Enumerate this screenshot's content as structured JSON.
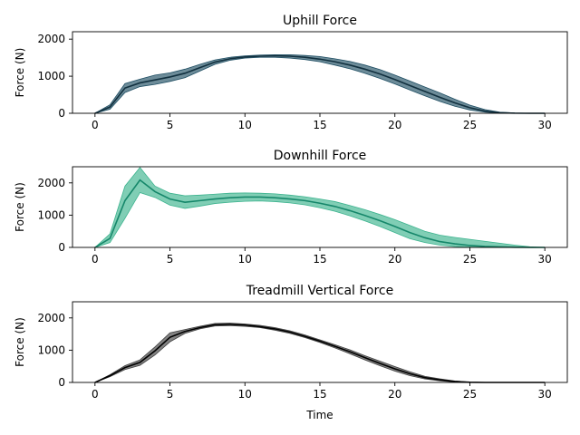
{
  "chart_data": [
    {
      "type": "area",
      "title": "Uphill Force",
      "xlabel": "",
      "ylabel": "Force (N)",
      "xlim": [
        -1.5,
        31.5
      ],
      "ylim": [
        0,
        2200
      ],
      "xticks": [
        0,
        5,
        10,
        15,
        20,
        25,
        30
      ],
      "yticks": [
        0,
        1000,
        2000
      ],
      "grid": false,
      "colors": {
        "line": "#11303f",
        "band": "#1f4e63"
      },
      "x": [
        0,
        1,
        2,
        3,
        4,
        5,
        6,
        7,
        8,
        9,
        10,
        11,
        12,
        13,
        14,
        15,
        16,
        17,
        18,
        19,
        20,
        21,
        22,
        23,
        24,
        25,
        26,
        27,
        28,
        29,
        30
      ],
      "mean": [
        0,
        170,
        680,
        820,
        900,
        980,
        1080,
        1230,
        1380,
        1470,
        1520,
        1540,
        1550,
        1540,
        1510,
        1460,
        1390,
        1300,
        1190,
        1060,
        910,
        750,
        590,
        430,
        280,
        150,
        60,
        15,
        3,
        0,
        0
      ],
      "lower": [
        0,
        110,
        560,
        720,
        780,
        860,
        960,
        1140,
        1320,
        1430,
        1490,
        1510,
        1510,
        1490,
        1450,
        1390,
        1300,
        1200,
        1080,
        940,
        790,
        630,
        470,
        320,
        190,
        90,
        30,
        5,
        0,
        0,
        0
      ],
      "upper": [
        0,
        230,
        800,
        920,
        1030,
        1090,
        1190,
        1320,
        1440,
        1510,
        1550,
        1570,
        1580,
        1580,
        1560,
        1530,
        1470,
        1400,
        1300,
        1180,
        1030,
        870,
        710,
        550,
        380,
        220,
        100,
        30,
        8,
        0,
        0
      ]
    },
    {
      "type": "area",
      "title": "Downhill Force",
      "xlabel": "",
      "ylabel": "Force (N)",
      "xlim": [
        -1.5,
        31.5
      ],
      "ylim": [
        0,
        2500
      ],
      "xticks": [
        0,
        5,
        10,
        15,
        20,
        25,
        30
      ],
      "yticks": [
        0,
        1000,
        2000
      ],
      "grid": false,
      "colors": {
        "line": "#15876a",
        "band": "#3cb38e"
      },
      "x": [
        0,
        1,
        2,
        3,
        4,
        5,
        6,
        7,
        8,
        9,
        10,
        11,
        12,
        13,
        14,
        15,
        16,
        17,
        18,
        19,
        20,
        21,
        22,
        23,
        24,
        25,
        26,
        27,
        28,
        29,
        30
      ],
      "mean": [
        0,
        280,
        1450,
        2090,
        1730,
        1500,
        1400,
        1450,
        1500,
        1540,
        1560,
        1560,
        1540,
        1500,
        1450,
        1370,
        1270,
        1140,
        990,
        830,
        650,
        460,
        300,
        180,
        110,
        60,
        30,
        15,
        5,
        0,
        0
      ],
      "lower": [
        0,
        150,
        900,
        1700,
        1550,
        1310,
        1210,
        1280,
        1360,
        1400,
        1430,
        1440,
        1420,
        1380,
        1320,
        1230,
        1120,
        980,
        820,
        650,
        460,
        270,
        150,
        70,
        30,
        10,
        0,
        0,
        0,
        0,
        0
      ],
      "upper": [
        0,
        420,
        1900,
        2480,
        1900,
        1680,
        1600,
        1620,
        1650,
        1680,
        1690,
        1680,
        1660,
        1620,
        1570,
        1500,
        1420,
        1300,
        1170,
        1020,
        860,
        680,
        500,
        380,
        310,
        250,
        190,
        130,
        70,
        20,
        0
      ]
    },
    {
      "type": "area",
      "title": "Treadmill Vertical Force",
      "xlabel": "Time",
      "ylabel": "Force (N)",
      "xlim": [
        -1.5,
        31.5
      ],
      "ylim": [
        0,
        2500
      ],
      "xticks": [
        0,
        5,
        10,
        15,
        20,
        25,
        30
      ],
      "yticks": [
        0,
        1000,
        2000
      ],
      "grid": false,
      "colors": {
        "line": "#000000",
        "band": "#404040"
      },
      "x": [
        0,
        1,
        2,
        3,
        4,
        5,
        6,
        7,
        8,
        9,
        10,
        11,
        12,
        13,
        14,
        15,
        16,
        17,
        18,
        19,
        20,
        21,
        22,
        23,
        24,
        25,
        26,
        27,
        28,
        29,
        30
      ],
      "mean": [
        0,
        210,
        460,
        620,
        980,
        1400,
        1580,
        1700,
        1790,
        1800,
        1780,
        1730,
        1660,
        1560,
        1430,
        1280,
        1120,
        950,
        770,
        590,
        420,
        270,
        150,
        80,
        30,
        5,
        0,
        0,
        0,
        0,
        0
      ],
      "lower": [
        0,
        180,
        400,
        530,
        850,
        1260,
        1520,
        1660,
        1750,
        1760,
        1740,
        1700,
        1620,
        1520,
        1390,
        1240,
        1070,
        890,
        700,
        520,
        350,
        210,
        110,
        50,
        15,
        0,
        0,
        0,
        0,
        0,
        0
      ],
      "upper": [
        0,
        240,
        520,
        700,
        1100,
        1540,
        1640,
        1740,
        1830,
        1840,
        1810,
        1770,
        1700,
        1600,
        1470,
        1320,
        1170,
        1010,
        830,
        660,
        490,
        330,
        190,
        110,
        45,
        10,
        0,
        0,
        0,
        0,
        0
      ]
    }
  ]
}
